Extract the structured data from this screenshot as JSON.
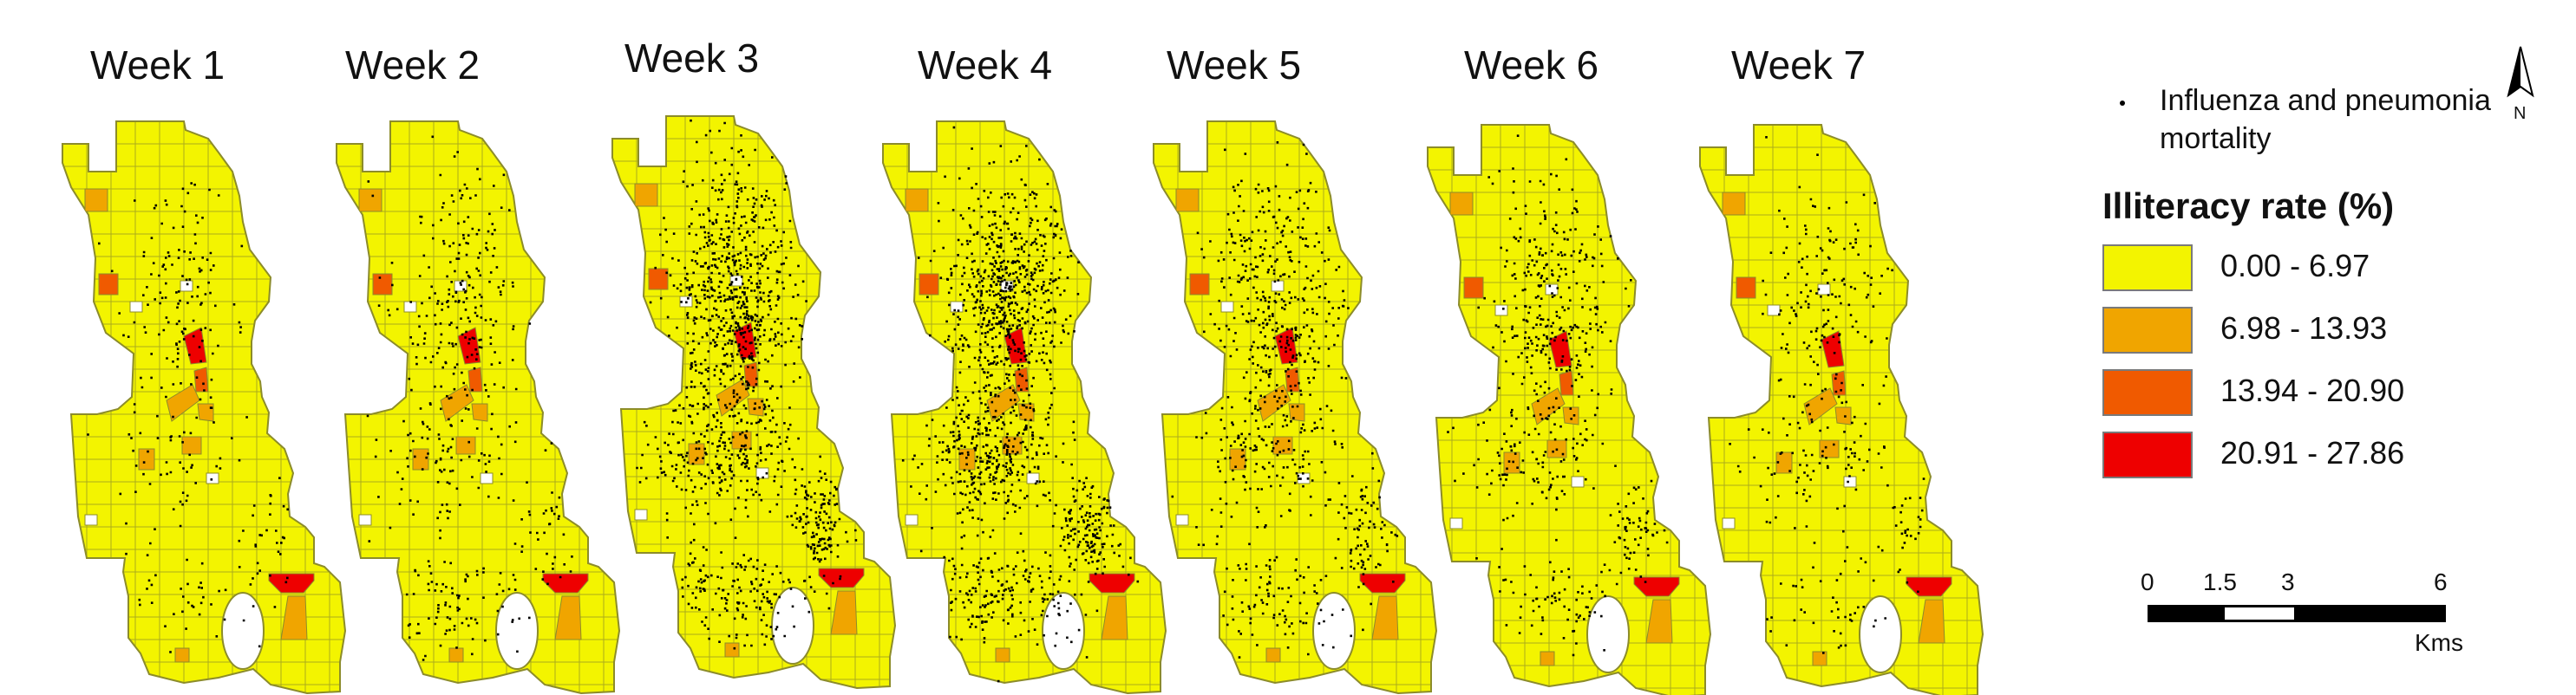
{
  "weeks": [
    "Week 1",
    "Week 2",
    "Week 3",
    "Week 4",
    "Week 5",
    "Week 6",
    "Week 7"
  ],
  "legend": {
    "mortality_label": "Influenza and pneumonia mortality",
    "title": "Illiteracy rate (%)",
    "classes": [
      {
        "label": "0.00 - 6.97",
        "color": "#f3f400"
      },
      {
        "label": "6.98 - 13.93",
        "color": "#f0a500"
      },
      {
        "label": "13.94 - 20.90",
        "color": "#f05a00"
      },
      {
        "label": "20.91 - 27.86",
        "color": "#ee0000"
      }
    ]
  },
  "scale": {
    "ticks": [
      "0",
      "1.5",
      "3",
      "6"
    ],
    "unit": "Kms"
  },
  "north": {
    "label": "N"
  },
  "colors": {
    "base": "#f3f400",
    "boundary": "#8c8c2a",
    "point": "#000000"
  },
  "mortality_density": [
    260,
    440,
    1250,
    1350,
    720,
    560,
    330
  ]
}
